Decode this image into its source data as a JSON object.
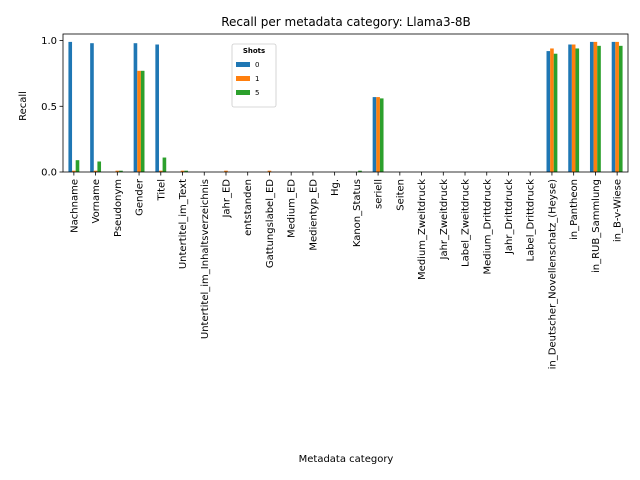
{
  "chart_data": {
    "type": "bar",
    "title": "Recall per metadata category: Llama3-8B",
    "xlabel": "Metadata category",
    "ylabel": "Recall",
    "ylim": [
      0,
      1.05
    ],
    "yticks": [
      "0.0",
      "0.5",
      "1.0"
    ],
    "ytick_values": [
      0,
      0.5,
      1.0
    ],
    "grid": false,
    "legend": {
      "title": "Shots",
      "placement": "upper center"
    },
    "categories": [
      "Nachname",
      "Vorname",
      "Pseudonym",
      "Gender",
      "Titel",
      "Untertitel_im_Text",
      "Untertitel_im_Inhaltsverzeichnis",
      "Jahr_ED",
      "entstanden",
      "Gattungslabel_ED",
      "Medium_ED",
      "Medientyp_ED",
      "Hg.",
      "Kanon_Status",
      "seriell",
      "Seiten",
      "Medium_Zweitdruck",
      "Jahr_Zweitdruck",
      "Label_Zweitdruck",
      "Medium_Drittdruck",
      "Jahr_Drittdruck",
      "Label_Drittdruck",
      "in_Deutscher_Novellenschatz_(Heyse)",
      "in_Pantheon",
      "in_RUB_Sammlung",
      "in_B-v-Wiese"
    ],
    "series": [
      {
        "name": "0",
        "color": "#1f77b4",
        "values": [
          0.99,
          0.98,
          0.0,
          0.98,
          0.97,
          0.0,
          0.0,
          0.0,
          0.0,
          0.0,
          0.0,
          0.0,
          0.0,
          0.0,
          0.57,
          0.0,
          0.0,
          0.0,
          0.0,
          0.0,
          0.0,
          0.0,
          0.92,
          0.97,
          0.99,
          0.99
        ]
      },
      {
        "name": "1",
        "color": "#ff7f0e",
        "values": [
          0.01,
          0.01,
          0.01,
          0.77,
          0.01,
          0.01,
          0.0,
          0.01,
          0.0,
          0.01,
          0.0,
          0.0,
          0.0,
          0.0,
          0.57,
          0.0,
          0.0,
          0.0,
          0.0,
          0.0,
          0.0,
          0.0,
          0.94,
          0.97,
          0.99,
          0.99
        ]
      },
      {
        "name": "5",
        "color": "#2ca02c",
        "values": [
          0.09,
          0.08,
          0.01,
          0.77,
          0.11,
          0.01,
          0.0,
          0.0,
          0.0,
          0.0,
          0.0,
          0.0,
          0.0,
          0.01,
          0.56,
          0.0,
          0.0,
          0.0,
          0.0,
          0.0,
          0.0,
          0.0,
          0.9,
          0.94,
          0.96,
          0.96
        ]
      }
    ]
  }
}
